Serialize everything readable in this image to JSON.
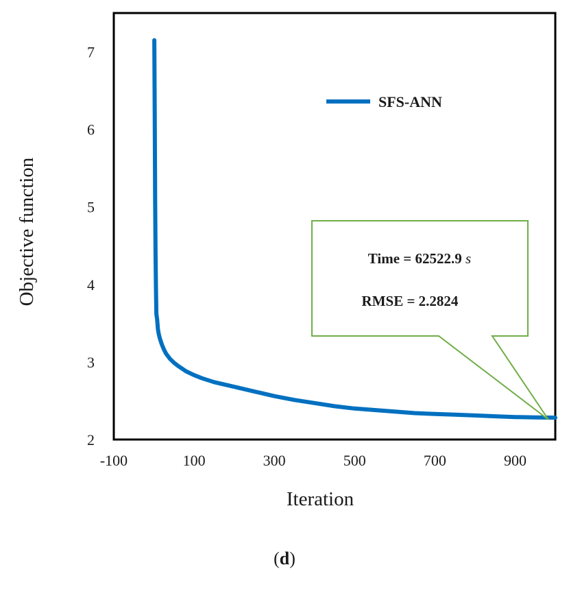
{
  "chart_data": {
    "type": "line",
    "title": "",
    "xlabel": "Iteration",
    "ylabel": "Objective function",
    "xlim": [
      -100,
      1000
    ],
    "ylim": [
      2,
      7.5
    ],
    "xticks": [
      -100,
      100,
      300,
      500,
      700,
      900
    ],
    "yticks": [
      2,
      3,
      4,
      5,
      6,
      7
    ],
    "grid": false,
    "legend_position": "top-right",
    "series": [
      {
        "name": "SFS-ANN",
        "color": "#0070c0",
        "x": [
          1,
          2,
          3,
          4,
          5,
          6,
          8,
          10,
          12,
          15,
          20,
          25,
          30,
          40,
          50,
          60,
          80,
          100,
          120,
          150,
          200,
          250,
          300,
          350,
          400,
          450,
          500,
          550,
          600,
          650,
          700,
          750,
          800,
          850,
          900,
          950,
          1000
        ],
        "y": [
          7.15,
          6.2,
          5.1,
          4.4,
          3.95,
          3.62,
          3.55,
          3.42,
          3.36,
          3.3,
          3.22,
          3.16,
          3.11,
          3.04,
          2.99,
          2.95,
          2.88,
          2.83,
          2.79,
          2.74,
          2.68,
          2.62,
          2.56,
          2.51,
          2.47,
          2.43,
          2.4,
          2.38,
          2.36,
          2.34,
          2.33,
          2.32,
          2.31,
          2.3,
          2.29,
          2.285,
          2.2824
        ]
      }
    ],
    "annotation": {
      "time_text": "Time = 62522.9",
      "time_unit": "s",
      "rmse_text": "RMSE = 2.2824",
      "border_color": "#70ad47",
      "points_to": [
        1000,
        2.2824
      ]
    }
  },
  "panel_label": "d"
}
